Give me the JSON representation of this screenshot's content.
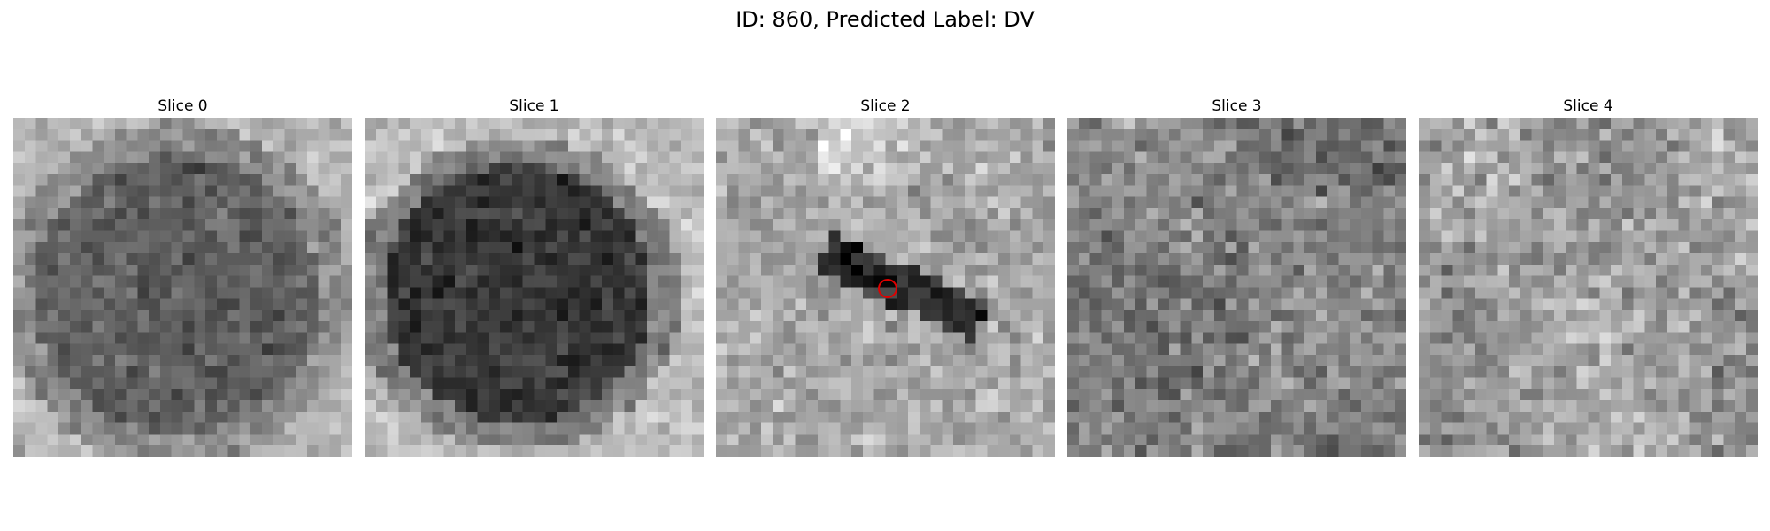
{
  "figure": {
    "title": "ID: 860, Predicted Label: DV"
  },
  "panels": [
    {
      "title": "Slice 0",
      "pattern": "dark-ellipse-left"
    },
    {
      "title": "Slice 1",
      "pattern": "darker-ellipse"
    },
    {
      "title": "Slice 2",
      "pattern": "dark-streak-with-marker"
    },
    {
      "title": "Slice 3",
      "pattern": "noise-dark"
    },
    {
      "title": "Slice 4",
      "pattern": "noise-light"
    }
  ],
  "marker": {
    "color": "#e00000",
    "panel": 2
  }
}
